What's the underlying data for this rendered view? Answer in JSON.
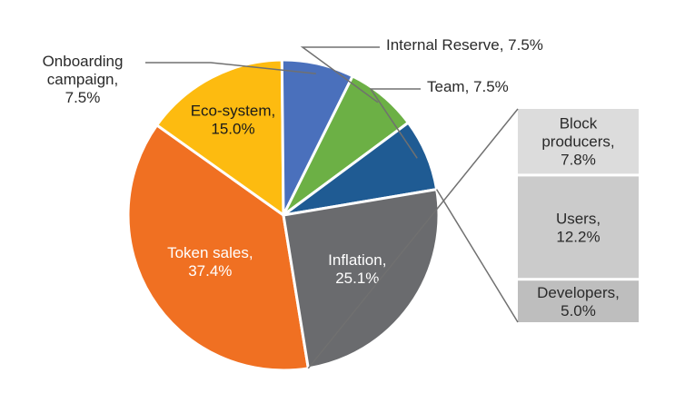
{
  "chart_data": {
    "type": "pie",
    "title": "",
    "slices": [
      {
        "label": "Token sales",
        "value": 37.4,
        "value_label": "37.4%",
        "color": "#F07022"
      },
      {
        "label": "Eco-system",
        "value": 15.0,
        "value_label": "15.0%",
        "color": "#FDBB10"
      },
      {
        "label": "Onboarding campaign",
        "value": 7.5,
        "value_label": "7.5%",
        "color": "#4A70BC"
      },
      {
        "label": "Internal Reserve",
        "value": 7.5,
        "value_label": "7.5%",
        "color": "#6CB045"
      },
      {
        "label": "Team",
        "value": 7.5,
        "value_label": "7.5%",
        "color": "#1F5B93"
      },
      {
        "label": "Inflation",
        "value": 25.1,
        "value_label": "25.1%",
        "color": "#6A6B6E"
      }
    ],
    "breakdown": {
      "parent": "Inflation",
      "items": [
        {
          "label": "Block producers",
          "value": 7.8,
          "value_label": "7.8%",
          "color": "#DCDCDC"
        },
        {
          "label": "Users",
          "value": 12.2,
          "value_label": "12.2%",
          "color": "#CBCBCB"
        },
        {
          "label": "Developers",
          "value": 5.0,
          "value_label": "5.0%",
          "color": "#BEBEBE"
        }
      ]
    }
  }
}
